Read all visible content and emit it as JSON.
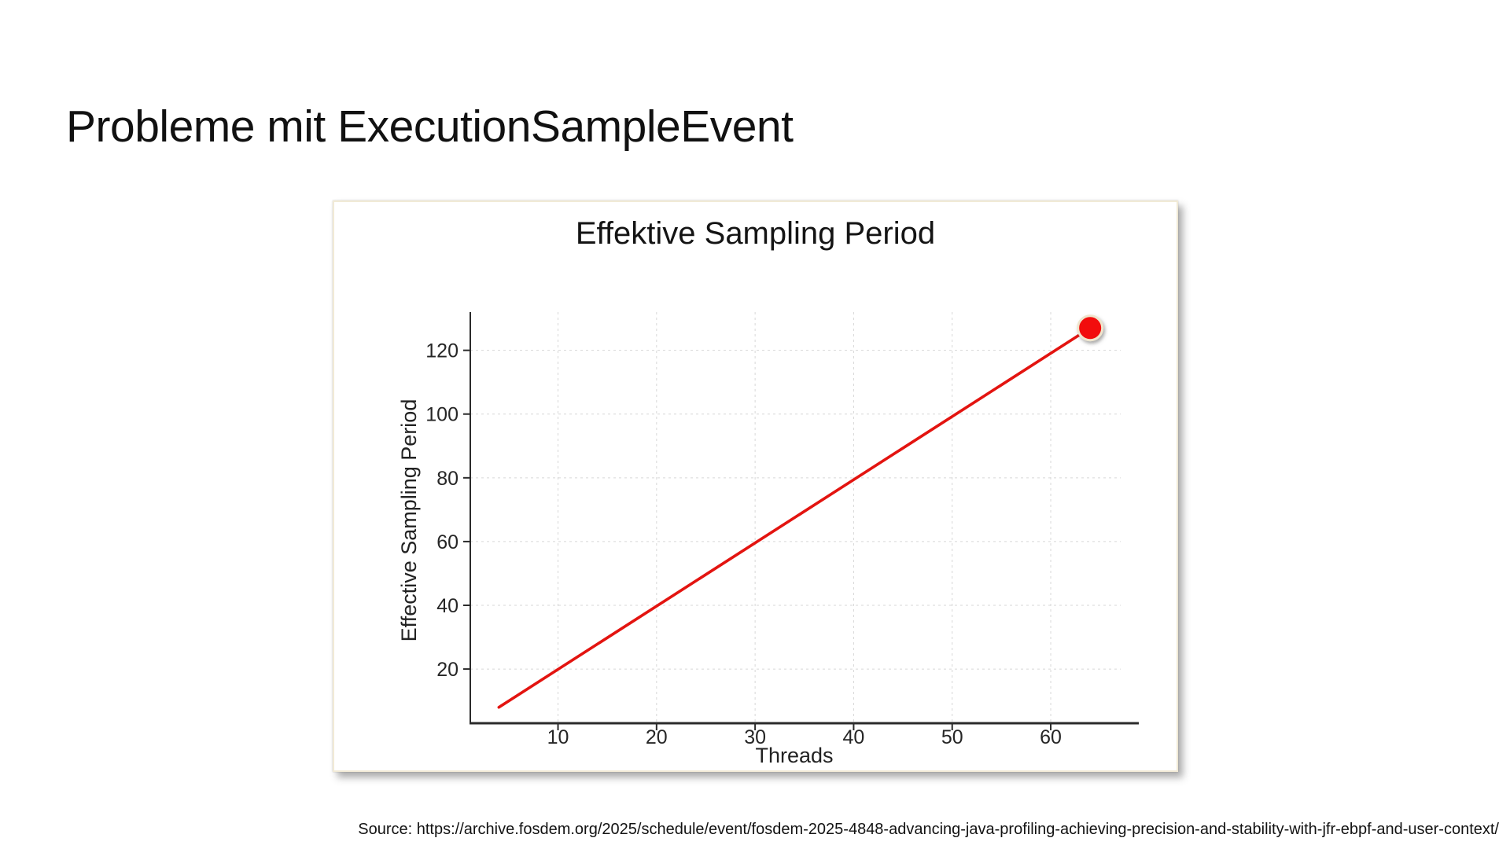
{
  "slide": {
    "title": "Probleme mit ExecutionSampleEvent",
    "source": "Source: https://archive.fosdem.org/2025/schedule/event/fosdem-2025-4848-advancing-java-profiling-achieving-precision-and-stability-with-jfr-ebpf-and-user-context/"
  },
  "chart_data": {
    "type": "line",
    "title": "Effektive Sampling Period",
    "xlabel": "Threads",
    "ylabel": "Effective Sampling Period",
    "xlim": [
      1.1,
      67.1
    ],
    "ylim": [
      3,
      132
    ],
    "x_ticks": [
      10,
      20,
      30,
      40,
      50,
      60
    ],
    "y_ticks": [
      20,
      40,
      60,
      80,
      100,
      120
    ],
    "grid": "dashed",
    "legend": "none",
    "series": [
      {
        "name": "effective_sampling_period_vs_threads",
        "points": [
          {
            "x": 4,
            "y": 8
          },
          {
            "x": 64,
            "y": 127
          }
        ],
        "end_marker": true
      }
    ],
    "colors": {
      "line": "#e31410",
      "marker_fill": "#f21108",
      "marker_stroke": "#efe5cd",
      "grid": "#d7d7d7",
      "axis": "#2b2b2b",
      "tick_label": "#262626",
      "panel_border": "#f1ead6"
    }
  }
}
